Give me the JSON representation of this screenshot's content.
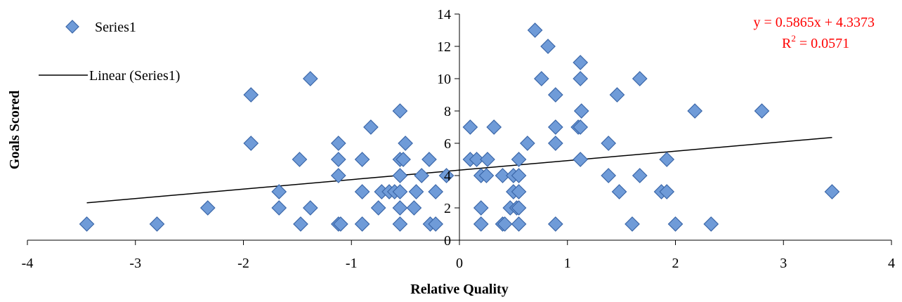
{
  "chart_data": {
    "type": "scatter",
    "xlabel": "Relative Quality",
    "ylabel": "Goals Scored",
    "xlim": [
      -4,
      4
    ],
    "ylim": [
      0,
      14
    ],
    "x_ticks": [
      "-4",
      "-3",
      "-2",
      "-1",
      "0",
      "1",
      "2",
      "3",
      "4"
    ],
    "y_ticks": [
      "0",
      "2",
      "4",
      "6",
      "8",
      "10",
      "12",
      "14"
    ],
    "grid": false,
    "legend_position": "top-left",
    "legend": {
      "series_label": "Series1",
      "trend_label": "Linear (Series1)"
    },
    "trendline": {
      "slope": 0.5865,
      "intercept": 4.3373,
      "x_range": [
        -3.45,
        3.45
      ],
      "equation": "y = 0.5865x + 4.3373",
      "r2_label": "R",
      "r2_sup": "2",
      "r2_value": " = 0.0571"
    },
    "colors": {
      "marker_fill": "#6f9bd8",
      "marker_stroke": "#3a66a8",
      "trendline": "#000000",
      "equation": "#ff0000"
    },
    "series": [
      {
        "name": "Series1",
        "points": [
          [
            -3.45,
            1
          ],
          [
            -2.8,
            1
          ],
          [
            -2.33,
            2
          ],
          [
            -1.93,
            9
          ],
          [
            -1.93,
            6
          ],
          [
            -1.67,
            3
          ],
          [
            -1.67,
            2
          ],
          [
            -1.48,
            5
          ],
          [
            -1.47,
            1
          ],
          [
            -1.38,
            10
          ],
          [
            -1.38,
            2
          ],
          [
            -1.12,
            6
          ],
          [
            -1.12,
            5
          ],
          [
            -1.12,
            4
          ],
          [
            -1.12,
            1
          ],
          [
            -1.1,
            1
          ],
          [
            -0.9,
            5
          ],
          [
            -0.9,
            3
          ],
          [
            -0.9,
            1
          ],
          [
            -0.82,
            7
          ],
          [
            -0.75,
            2
          ],
          [
            -0.72,
            3
          ],
          [
            -0.65,
            3
          ],
          [
            -0.6,
            3
          ],
          [
            -0.55,
            8
          ],
          [
            -0.55,
            5
          ],
          [
            -0.55,
            4
          ],
          [
            -0.55,
            3
          ],
          [
            -0.55,
            2
          ],
          [
            -0.55,
            1
          ],
          [
            -0.52,
            5
          ],
          [
            -0.5,
            6
          ],
          [
            -0.42,
            2
          ],
          [
            -0.4,
            3
          ],
          [
            -0.35,
            4
          ],
          [
            -0.28,
            5
          ],
          [
            -0.27,
            1
          ],
          [
            -0.22,
            3
          ],
          [
            -0.22,
            1
          ],
          [
            -0.12,
            4
          ],
          [
            0.1,
            7
          ],
          [
            0.1,
            5
          ],
          [
            0.16,
            5
          ],
          [
            0.2,
            4
          ],
          [
            0.2,
            2
          ],
          [
            0.2,
            1
          ],
          [
            0.25,
            4
          ],
          [
            0.26,
            5
          ],
          [
            0.32,
            7
          ],
          [
            0.4,
            4
          ],
          [
            0.4,
            1
          ],
          [
            0.42,
            1
          ],
          [
            0.47,
            2
          ],
          [
            0.5,
            4
          ],
          [
            0.5,
            3
          ],
          [
            0.53,
            2
          ],
          [
            0.55,
            5
          ],
          [
            0.55,
            4
          ],
          [
            0.55,
            3
          ],
          [
            0.55,
            2
          ],
          [
            0.55,
            1
          ],
          [
            0.63,
            6
          ],
          [
            0.7,
            13
          ],
          [
            0.76,
            10
          ],
          [
            0.82,
            12
          ],
          [
            0.89,
            9
          ],
          [
            0.89,
            7
          ],
          [
            0.89,
            6
          ],
          [
            0.89,
            1
          ],
          [
            1.1,
            7
          ],
          [
            1.12,
            11
          ],
          [
            1.12,
            10
          ],
          [
            1.12,
            7
          ],
          [
            1.12,
            5
          ],
          [
            1.13,
            8
          ],
          [
            1.38,
            6
          ],
          [
            1.38,
            4
          ],
          [
            1.46,
            9
          ],
          [
            1.48,
            3
          ],
          [
            1.6,
            1
          ],
          [
            1.67,
            10
          ],
          [
            1.67,
            4
          ],
          [
            1.87,
            3
          ],
          [
            1.92,
            5
          ],
          [
            1.92,
            3
          ],
          [
            2.0,
            1
          ],
          [
            2.18,
            8
          ],
          [
            2.33,
            1
          ],
          [
            2.8,
            8
          ],
          [
            3.45,
            3
          ]
        ]
      }
    ]
  }
}
